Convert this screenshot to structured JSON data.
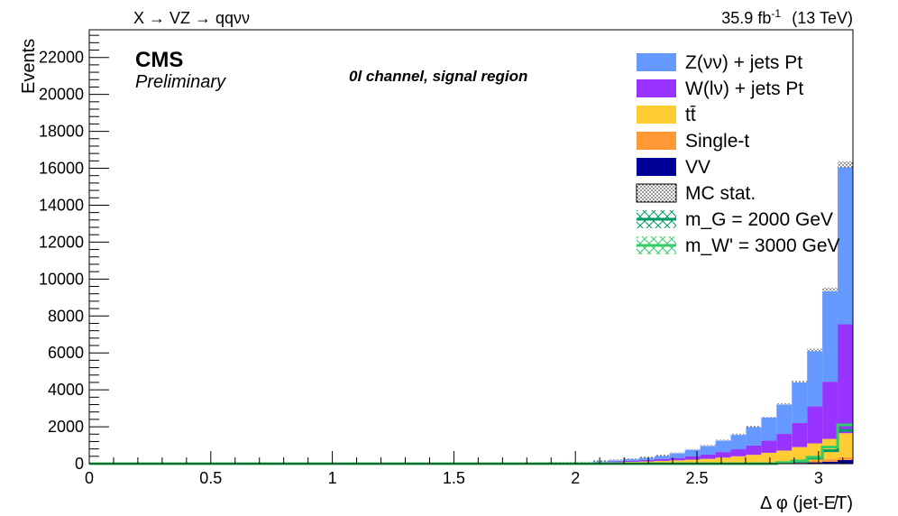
{
  "header": {
    "process": "X → VZ → qqνν",
    "lumi": "35.9 fb",
    "lumi_exp": "-1",
    "energy": "(13 TeV)"
  },
  "labels": {
    "cms": "CMS",
    "preliminary": "Preliminary",
    "channel": "0l channel, signal region"
  },
  "colors": {
    "znn": "#6699ff",
    "wln": "#9933ff",
    "ttbar": "#ffcc33",
    "singlet": "#ff9933",
    "vv": "#000099",
    "sig1": "#009966",
    "sig2": "#33cc66"
  },
  "chart_data": {
    "type": "bar",
    "stacked": true,
    "xlabel": "Δ φ (jet-E̸T)",
    "ylabel": "Events",
    "xlim": [
      0,
      3.1416
    ],
    "ylim": [
      0,
      23500
    ],
    "xticks": [
      "0",
      "0.5",
      "1",
      "1.5",
      "2",
      "2.5",
      "3"
    ],
    "yticks": [
      "0",
      "2000",
      "4000",
      "6000",
      "8000",
      "10000",
      "12000",
      "14000",
      "16000",
      "18000",
      "20000",
      "22000"
    ],
    "bin_edges": [
      0,
      0.0628,
      0.1257,
      0.1885,
      0.2513,
      0.3142,
      0.377,
      0.4398,
      0.5027,
      0.5655,
      0.6283,
      0.6912,
      0.754,
      0.8168,
      0.8796,
      0.9425,
      1.0053,
      1.0681,
      1.131,
      1.1938,
      1.2566,
      1.3195,
      1.3823,
      1.4451,
      1.508,
      1.5708,
      1.6336,
      1.6965,
      1.7593,
      1.8221,
      1.885,
      1.9478,
      2.0106,
      2.0735,
      2.1363,
      2.1991,
      2.2619,
      2.3248,
      2.3876,
      2.4504,
      2.5133,
      2.5761,
      2.6389,
      2.7018,
      2.7646,
      2.8274,
      2.8903,
      2.9531,
      3.0159,
      3.0788,
      3.1416
    ],
    "series": [
      {
        "name": "VV",
        "color": "#000099",
        "values": [
          0,
          0,
          0,
          0,
          0,
          0,
          0,
          0,
          0,
          0,
          0,
          0,
          0,
          0,
          0,
          0,
          0,
          0,
          0,
          0,
          0,
          0,
          0,
          0,
          0,
          0,
          0,
          0,
          0,
          0,
          0,
          0,
          0,
          0,
          0,
          0,
          0,
          0,
          0,
          0,
          0,
          0,
          0,
          0,
          0,
          0,
          40,
          70,
          110,
          200
        ]
      },
      {
        "name": "Single-t",
        "color": "#ff9933",
        "values": [
          0,
          0,
          0,
          0,
          0,
          0,
          0,
          0,
          0,
          0,
          0,
          0,
          0,
          0,
          0,
          0,
          0,
          0,
          0,
          0,
          0,
          0,
          0,
          0,
          0,
          0,
          0,
          0,
          0,
          0,
          0,
          0,
          0,
          0,
          0,
          0,
          0,
          0,
          0,
          0,
          0,
          10,
          20,
          30,
          40,
          60,
          80,
          100,
          130,
          150
        ]
      },
      {
        "name": "tt̄",
        "color": "#ffcc33",
        "values": [
          0,
          0,
          0,
          0,
          0,
          0,
          0,
          0,
          0,
          0,
          0,
          0,
          0,
          0,
          0,
          0,
          0,
          0,
          0,
          0,
          0,
          0,
          0,
          0,
          0,
          0,
          0,
          0,
          10,
          20,
          40,
          50,
          60,
          70,
          80,
          100,
          120,
          150,
          180,
          220,
          260,
          320,
          380,
          450,
          550,
          650,
          780,
          930,
          1100,
          1300
        ]
      },
      {
        "name": "W(lν) + jets Pt",
        "color": "#9933ff",
        "values": [
          0,
          0,
          0,
          0,
          0,
          0,
          0,
          0,
          0,
          0,
          0,
          0,
          0,
          0,
          0,
          0,
          0,
          0,
          0,
          0,
          0,
          0,
          0,
          0,
          0,
          0,
          0,
          0,
          0,
          0,
          0,
          0,
          0,
          20,
          40,
          60,
          80,
          100,
          130,
          170,
          230,
          300,
          380,
          500,
          660,
          900,
          1300,
          2000,
          3100,
          5900
        ]
      },
      {
        "name": "Z(νν) + jets Pt",
        "color": "#6699ff",
        "values": [
          0,
          0,
          0,
          0,
          0,
          0,
          0,
          0,
          0,
          0,
          0,
          0,
          0,
          0,
          0,
          0,
          0,
          0,
          0,
          0,
          0,
          0,
          0,
          0,
          0,
          0,
          0,
          0,
          0,
          0,
          0,
          0,
          0,
          30,
          60,
          90,
          120,
          170,
          250,
          360,
          470,
          620,
          780,
          1000,
          1250,
          1600,
          2200,
          3000,
          4900,
          8500
        ]
      }
    ],
    "signals": [
      {
        "name": "m_G = 2000 GeV",
        "color": "#009966",
        "values": [
          0,
          0,
          0,
          0,
          0,
          0,
          0,
          0,
          0,
          0,
          0,
          0,
          0,
          0,
          0,
          0,
          0,
          0,
          0,
          0,
          0,
          0,
          0,
          0,
          0,
          0,
          0,
          0,
          0,
          0,
          0,
          0,
          0,
          0,
          0,
          0,
          0,
          0,
          0,
          0,
          0,
          0,
          0,
          0,
          0,
          50,
          120,
          300,
          700,
          1800
        ]
      },
      {
        "name": "m_W' = 3000 GeV",
        "color": "#33cc66",
        "values": [
          0,
          0,
          0,
          0,
          0,
          0,
          0,
          0,
          0,
          0,
          0,
          0,
          0,
          0,
          0,
          0,
          0,
          0,
          0,
          0,
          0,
          0,
          0,
          0,
          0,
          0,
          0,
          0,
          0,
          0,
          0,
          0,
          0,
          0,
          0,
          0,
          0,
          0,
          0,
          0,
          0,
          0,
          0,
          0,
          0,
          60,
          150,
          350,
          900,
          2100
        ]
      }
    ],
    "legend": {
      "placement": "top-right",
      "entries": [
        "Z(νν) + jets Pt",
        "W(lν) + jets Pt",
        "tt̄",
        "Single-t",
        "VV",
        "MC stat.",
        "m_G = 2000 GeV",
        "m_W' = 3000 GeV"
      ]
    }
  }
}
